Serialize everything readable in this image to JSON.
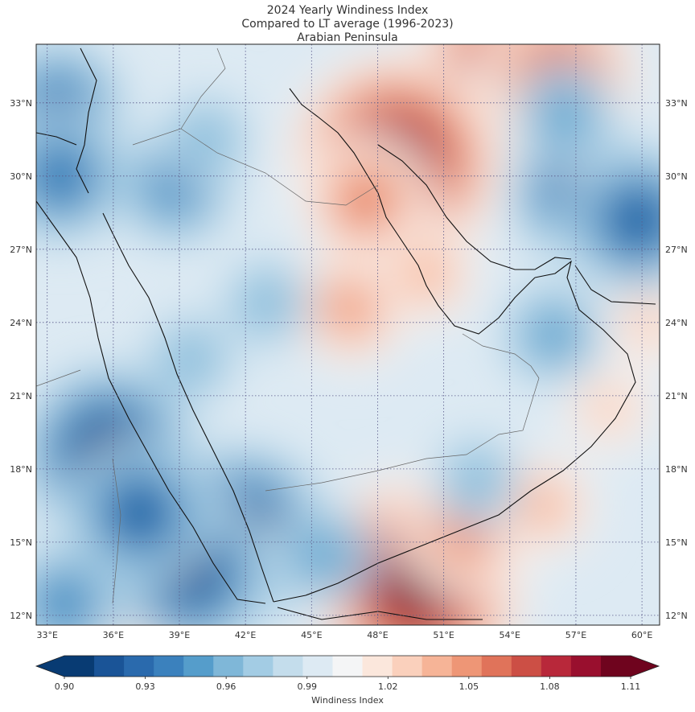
{
  "title": {
    "line1": "2024 Yearly Windiness Index",
    "line2": "Compared to LT average (1996-2023)",
    "line3": "Arabian Peninsula"
  },
  "map": {
    "lon_range": [
      32.5,
      60.8
    ],
    "lat_range": [
      11.6,
      35.4
    ],
    "lon_ticks": [
      "33°E",
      "36°E",
      "39°E",
      "42°E",
      "45°E",
      "48°E",
      "51°E",
      "54°E",
      "57°E",
      "60°E"
    ],
    "lat_ticks": [
      "12°N",
      "15°N",
      "18°N",
      "21°N",
      "24°N",
      "27°N",
      "30°N",
      "33°N"
    ],
    "grid": "dotted"
  },
  "colorbar": {
    "label": "Windiness Index",
    "tick_labels": [
      "0.90",
      "0.93",
      "0.96",
      "0.99",
      "1.02",
      "1.05",
      "1.08",
      "1.11"
    ],
    "range": [
      0.9,
      1.11
    ],
    "step": 0.0105,
    "colors": [
      "#083b73",
      "#1a5497",
      "#2a6aad",
      "#3b81bd",
      "#559dcb",
      "#7fb7d8",
      "#a3cce4",
      "#c4ddec",
      "#ddeaf3",
      "#f4f5f6",
      "#fbe7dc",
      "#fad0bc",
      "#f6b497",
      "#ee9676",
      "#e0735a",
      "#cc4f45",
      "#b8283a",
      "#990f2e",
      "#6f041e"
    ]
  },
  "chart_data": {
    "type": "heatmap",
    "title": "2024 Yearly Windiness Index / Compared to LT average (1996-2023) / Arabian Peninsula",
    "value_label": "Windiness Index",
    "x_axis": "longitude",
    "y_axis": "latitude",
    "xlim": [
      32.5,
      60.8
    ],
    "ylim": [
      11.6,
      35.4
    ],
    "background_value": 0.99,
    "anomalies": [
      {
        "lon": 53.8,
        "lat": 34.3,
        "value": 1.09
      },
      {
        "lon": 56.2,
        "lat": 34.0,
        "value": 1.07
      },
      {
        "lon": 48.8,
        "lat": 30.6,
        "value": 1.11
      },
      {
        "lon": 47.5,
        "lat": 29.0,
        "value": 1.05
      },
      {
        "lon": 46.8,
        "lat": 24.6,
        "value": 1.04
      },
      {
        "lon": 50.2,
        "lat": 26.0,
        "value": 1.03
      },
      {
        "lon": 49.8,
        "lat": 13.3,
        "value": 1.11
      },
      {
        "lon": 52.0,
        "lat": 15.5,
        "value": 1.05
      },
      {
        "lon": 55.5,
        "lat": 16.5,
        "value": 1.03
      },
      {
        "lon": 58.5,
        "lat": 20.5,
        "value": 1.02
      },
      {
        "lon": 60.3,
        "lat": 24.0,
        "value": 1.02
      },
      {
        "lon": 37.8,
        "lat": 12.0,
        "value": 1.03
      },
      {
        "lon": 35.8,
        "lat": 18.6,
        "value": 0.9
      },
      {
        "lon": 41.8,
        "lat": 15.3,
        "value": 0.9
      },
      {
        "lon": 39.5,
        "lat": 13.8,
        "value": 0.91
      },
      {
        "lon": 37.2,
        "lat": 16.2,
        "value": 0.92
      },
      {
        "lon": 33.5,
        "lat": 32.8,
        "value": 0.93
      },
      {
        "lon": 33.6,
        "lat": 30.0,
        "value": 0.93
      },
      {
        "lon": 38.8,
        "lat": 29.6,
        "value": 0.94
      },
      {
        "lon": 40.2,
        "lat": 31.5,
        "value": 0.96
      },
      {
        "lon": 57.2,
        "lat": 29.5,
        "value": 0.92
      },
      {
        "lon": 59.8,
        "lat": 28.2,
        "value": 0.92
      },
      {
        "lon": 56.5,
        "lat": 32.5,
        "value": 0.95
      },
      {
        "lon": 56.0,
        "lat": 23.5,
        "value": 0.95
      },
      {
        "lon": 43.0,
        "lat": 24.8,
        "value": 0.96
      },
      {
        "lon": 45.5,
        "lat": 14.5,
        "value": 0.95
      },
      {
        "lon": 33.8,
        "lat": 12.5,
        "value": 0.94
      },
      {
        "lon": 52.5,
        "lat": 17.5,
        "value": 0.96
      },
      {
        "lon": 39.5,
        "lat": 22.5,
        "value": 0.96
      }
    ]
  }
}
